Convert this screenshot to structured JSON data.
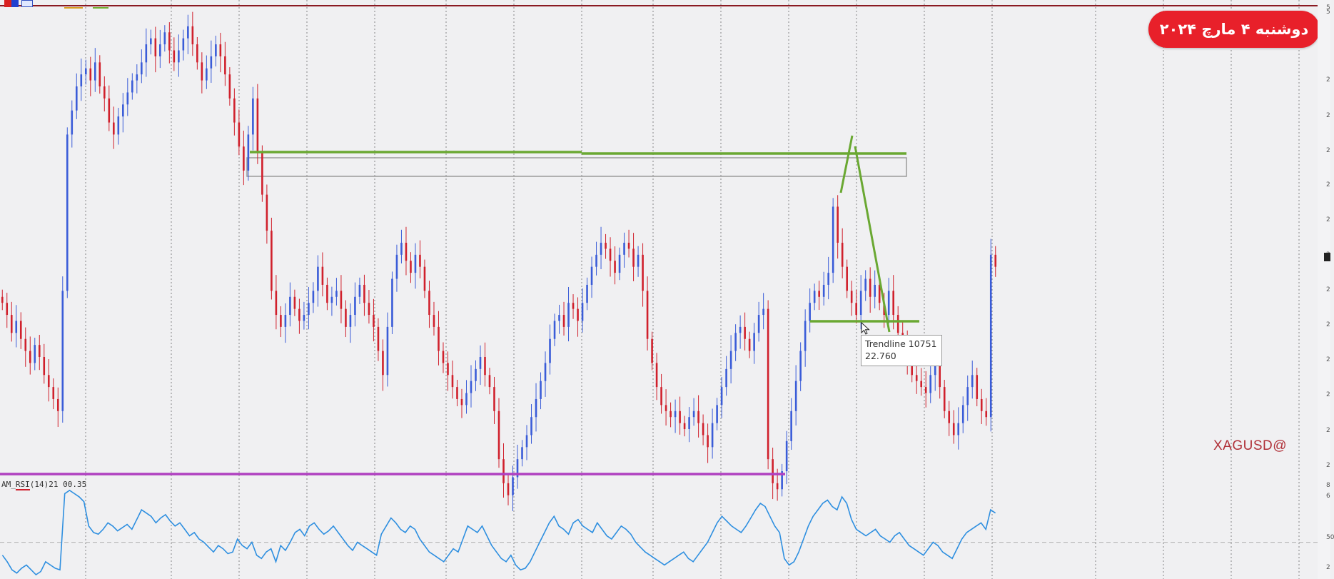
{
  "date_badge": "دوشنبه ۴ مارچ ۲۰۲۴",
  "symbol_watermark": "XAGUSD@",
  "tooltip": {
    "line1": "Trendline 10751",
    "line2": "22.760"
  },
  "indicator_label": "AM_RSI(14)21 00.35",
  "axis_ticks": [
    "5",
    "5",
    "2",
    "2",
    "2",
    "2",
    "2",
    "2",
    "2",
    "2",
    "2",
    "2",
    "2",
    "2",
    "8",
    "6",
    "50",
    "2"
  ],
  "colors": {
    "background": "#f0f0f2",
    "bull": "#3a5cd8",
    "bear": "#d0202c",
    "rsi": "#2e8fe0",
    "trend_green": "#6aa832",
    "magenta_line": "#b040c0",
    "top_line": "#8a1a22",
    "grid": "#7a7a7a",
    "badge": "#e8202a"
  },
  "icons": [
    "toolbar-color-icon",
    "toolbar-line-icon",
    "mouse-cursor-icon"
  ],
  "chart_data": {
    "type": "candlestick",
    "symbol": "XAGUSD",
    "price_candles": {
      "ylim": [
        21.8,
        25.6
      ],
      "closes": [
        23.2,
        23.1,
        22.95,
        23.05,
        22.9,
        22.8,
        22.7,
        22.85,
        22.75,
        22.6,
        22.5,
        22.4,
        22.3,
        23.3,
        24.6,
        24.8,
        25.0,
        25.1,
        25.15,
        25.05,
        25.2,
        25.0,
        24.9,
        24.7,
        24.6,
        24.75,
        24.85,
        24.95,
        25.05,
        25.1,
        25.2,
        25.35,
        25.4,
        25.25,
        25.35,
        25.45,
        25.3,
        25.2,
        25.3,
        25.4,
        25.5,
        25.35,
        25.2,
        25.05,
        25.15,
        25.25,
        25.35,
        25.25,
        25.1,
        24.9,
        24.7,
        24.5,
        24.3,
        24.6,
        24.9,
        24.45,
        24.1,
        23.8,
        23.3,
        23.1,
        23.0,
        23.1,
        23.25,
        23.15,
        23.05,
        23.1,
        23.2,
        23.3,
        23.5,
        23.35,
        23.2,
        23.25,
        23.3,
        23.15,
        23.0,
        23.1,
        23.25,
        23.35,
        23.2,
        23.1,
        23.0,
        22.8,
        22.6,
        23.0,
        23.4,
        23.6,
        23.7,
        23.55,
        23.45,
        23.6,
        23.5,
        23.3,
        23.1,
        23.0,
        22.8,
        22.7,
        22.6,
        22.5,
        22.4,
        22.35,
        22.45,
        22.55,
        22.65,
        22.75,
        22.6,
        22.5,
        22.3,
        21.9,
        21.7,
        21.6,
        21.75,
        21.9,
        22.0,
        22.1,
        22.25,
        22.4,
        22.55,
        22.7,
        22.9,
        23.05,
        23.1,
        23.0,
        23.2,
        23.15,
        23.05,
        23.2,
        23.35,
        23.5,
        23.6,
        23.7,
        23.65,
        23.55,
        23.45,
        23.6,
        23.7,
        23.65,
        23.5,
        23.6,
        23.3,
        22.9,
        22.7,
        22.5,
        22.35,
        22.3,
        22.25,
        22.3,
        22.2,
        22.15,
        22.25,
        22.3,
        22.2,
        22.1,
        22.0,
        22.2,
        22.35,
        22.5,
        22.65,
        22.8,
        22.95,
        23.0,
        22.9,
        22.8,
        22.95,
        23.1,
        23.15,
        21.9,
        21.7,
        21.65,
        21.8,
        22.05,
        22.3,
        22.55,
        22.8,
        23.05,
        23.2,
        23.3,
        23.25,
        23.35,
        23.45,
        24.0,
        23.7,
        23.5,
        23.3,
        23.2,
        23.1,
        23.3,
        23.4,
        23.25,
        23.35,
        23.2,
        23.1,
        23.3,
        23.1,
        22.95,
        22.85,
        22.7,
        22.6,
        22.55,
        22.5,
        22.45,
        22.6,
        22.8,
        22.5,
        22.3,
        22.2,
        22.1,
        22.2,
        22.35,
        22.5,
        22.6,
        22.4,
        22.3,
        22.25,
        23.6,
        23.5
      ],
      "opens_offset_note": "omitted"
    },
    "rsi": {
      "name": "AM_RSI",
      "ylim": [
        30,
        85
      ],
      "level": 50,
      "values": [
        42,
        38,
        33,
        31,
        34,
        36,
        33,
        30,
        32,
        38,
        36,
        34,
        33,
        80,
        82,
        80,
        78,
        75,
        60,
        56,
        55,
        58,
        62,
        60,
        57,
        59,
        61,
        58,
        64,
        70,
        68,
        66,
        62,
        65,
        67,
        63,
        60,
        62,
        58,
        54,
        56,
        52,
        50,
        47,
        44,
        48,
        46,
        43,
        44,
        52,
        48,
        46,
        50,
        42,
        40,
        44,
        46,
        38,
        48,
        45,
        50,
        56,
        58,
        54,
        60,
        62,
        58,
        55,
        57,
        60,
        56,
        52,
        48,
        45,
        50,
        48,
        46,
        44,
        42,
        55,
        60,
        65,
        62,
        58,
        56,
        60,
        58,
        52,
        48,
        44,
        42,
        40,
        38,
        42,
        46,
        44,
        52,
        60,
        58,
        56,
        60,
        54,
        48,
        44,
        40,
        38,
        42,
        36,
        33,
        34,
        38,
        44,
        50,
        56,
        62,
        66,
        60,
        58,
        55,
        62,
        64,
        60,
        58,
        56,
        62,
        58,
        54,
        52,
        56,
        60,
        58,
        55,
        50,
        47,
        44,
        42,
        40,
        38,
        36,
        38,
        40,
        42,
        44,
        40,
        38,
        42,
        46,
        50,
        56,
        62,
        66,
        63,
        60,
        58,
        56,
        60,
        65,
        70,
        74,
        72,
        66,
        60,
        56,
        40,
        36,
        38,
        44,
        52,
        60,
        66,
        70,
        74,
        76,
        72,
        70,
        78,
        74,
        64,
        58,
        56,
        54,
        56,
        58,
        54,
        52,
        50,
        54,
        56,
        52,
        48,
        46,
        44,
        42,
        46,
        50,
        48,
        44,
        42,
        40,
        46,
        52,
        56,
        58,
        60,
        62,
        58,
        70,
        68
      ]
    }
  }
}
